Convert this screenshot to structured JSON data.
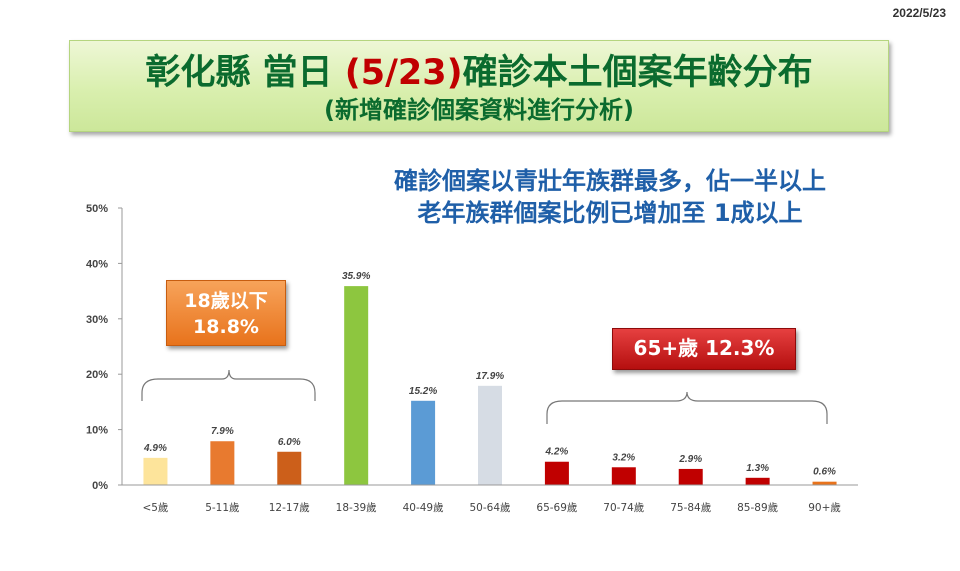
{
  "date": "2022/5/23",
  "title": {
    "part1": "彰化縣 當日 ",
    "part2": "(5/23)",
    "part3": "確診本土個案年齡分布",
    "line2": "(新增確診個案資料進行分析)"
  },
  "subtitle": {
    "line1": "確診個案以青壯年族群最多，佔一半以上",
    "line2": "老年族群個案比例已增加至 1成以上"
  },
  "callouts": {
    "youth_line1": "18歲以下",
    "youth_line2": "18.8%",
    "elder": "65+歲 12.3%"
  },
  "colors": {
    "orange": "#e8731c",
    "red": "#c00000",
    "green": "#8dc63f",
    "blue": "#5b9bd5",
    "silver": "#d6dce4",
    "pale_yellow": "#fde49b",
    "mid_orange": "#e87a2f",
    "dark_orange": "#cc5f1a"
  },
  "chart_data": {
    "type": "bar",
    "categories": [
      "<5歲",
      "5-11歲",
      "12-17歲",
      "18-39歲",
      "40-49歲",
      "50-64歲",
      "65-69歲",
      "70-74歲",
      "75-84歲",
      "85-89歲",
      "90+歲"
    ],
    "values": [
      4.9,
      7.9,
      6.0,
      35.9,
      15.2,
      17.9,
      4.2,
      3.2,
      2.9,
      1.3,
      0.6
    ],
    "value_labels": [
      "4.9%",
      "7.9%",
      "6.0%",
      "35.9%",
      "15.2%",
      "17.9%",
      "4.2%",
      "3.2%",
      "2.9%",
      "1.3%",
      "0.6%"
    ],
    "bar_colors": [
      "#fde49b",
      "#e87a2f",
      "#cc5f1a",
      "#8dc63f",
      "#5b9bd5",
      "#d6dce4",
      "#c00000",
      "#c00000",
      "#c00000",
      "#c00000",
      "#e8731c"
    ],
    "ylim": [
      0,
      50
    ],
    "yticks": [
      0,
      10,
      20,
      30,
      40,
      50
    ],
    "ytick_labels": [
      "0%",
      "10%",
      "20%",
      "30%",
      "40%",
      "50%"
    ],
    "xlabel": "",
    "ylabel": "",
    "grid": false
  }
}
